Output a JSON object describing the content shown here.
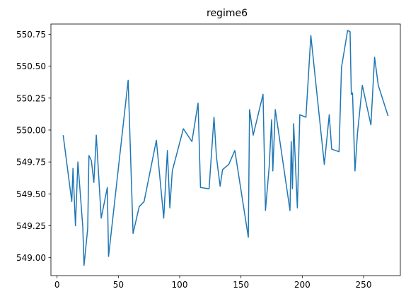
{
  "chart_data": {
    "type": "line",
    "title": "regime6",
    "xlabel": "",
    "ylabel": "",
    "xlim": [
      -5,
      280
    ],
    "ylim": [
      548.86,
      550.83
    ],
    "grid": false,
    "xticks": [
      0,
      50,
      100,
      150,
      200,
      250
    ],
    "yticks": [
      549.0,
      549.25,
      549.5,
      549.75,
      550.0,
      550.25,
      550.5,
      550.75
    ],
    "xtick_labels": [
      "0",
      "50",
      "100",
      "150",
      "200",
      "250"
    ],
    "ytick_labels": [
      "549.00",
      "549.25",
      "549.50",
      "549.75",
      "550.00",
      "550.25",
      "550.50",
      "550.75"
    ],
    "line_color": "#1f77b4",
    "series": [
      {
        "x": [
          5,
          12,
          13,
          15,
          17,
          21,
          22,
          25,
          26,
          28,
          30,
          31,
          32,
          36,
          41,
          42,
          58,
          62,
          67,
          71,
          81,
          87,
          90,
          92,
          94,
          103,
          110,
          115,
          117,
          124,
          128,
          130,
          133,
          135,
          140,
          145,
          156,
          157,
          160,
          168,
          170,
          173,
          175,
          176,
          178,
          190,
          191,
          192,
          193,
          196,
          198,
          203,
          207,
          218,
          222,
          224,
          230,
          232,
          237,
          239,
          240,
          241,
          243,
          245,
          249,
          256,
          259,
          262,
          270
        ],
        "y": [
          549.96,
          549.44,
          549.7,
          549.25,
          549.75,
          549.24,
          548.94,
          549.23,
          549.8,
          549.76,
          549.59,
          549.77,
          549.96,
          549.31,
          549.55,
          549.01,
          550.39,
          549.19,
          549.4,
          549.44,
          549.92,
          549.31,
          549.84,
          549.39,
          549.68,
          550.01,
          549.91,
          550.21,
          549.55,
          549.54,
          550.1,
          549.79,
          549.56,
          549.69,
          549.73,
          549.84,
          549.16,
          550.16,
          549.96,
          550.28,
          549.37,
          549.71,
          550.08,
          549.68,
          550.16,
          549.37,
          549.91,
          549.54,
          550.05,
          549.39,
          550.12,
          550.1,
          550.74,
          549.73,
          550.12,
          549.85,
          549.83,
          550.49,
          550.78,
          550.77,
          550.28,
          550.29,
          549.68,
          549.97,
          550.35,
          550.04,
          550.57,
          550.35,
          550.11
        ]
      }
    ]
  }
}
